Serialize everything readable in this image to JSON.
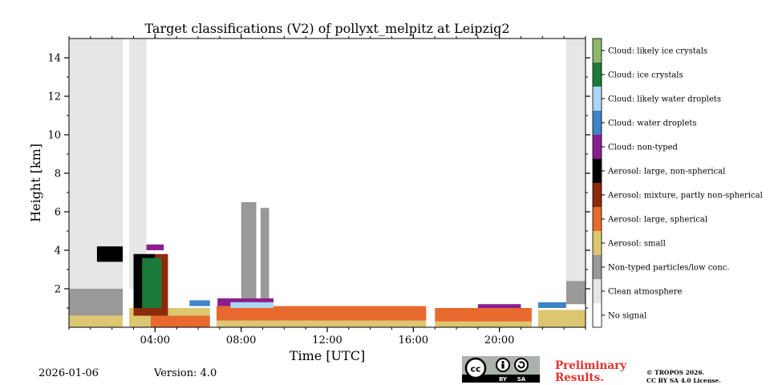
{
  "chart_data": {
    "type": "heatmap",
    "title": "Target classifications (V2) of pollyxt_melpitz at Leipzig2",
    "xlabel": "Time [UTC]",
    "ylabel": "Height [km]",
    "xlim_hours": [
      0,
      24
    ],
    "ylim_km": [
      0,
      15
    ],
    "xticks": [
      {
        "value": 4,
        "label": "04:00"
      },
      {
        "value": 8,
        "label": "08:00"
      },
      {
        "value": 12,
        "label": "12:00"
      },
      {
        "value": 16,
        "label": "16:00"
      },
      {
        "value": 20,
        "label": "20:00"
      }
    ],
    "yticks": [
      {
        "value": 2,
        "label": "2"
      },
      {
        "value": 4,
        "label": "4"
      },
      {
        "value": 6,
        "label": "6"
      },
      {
        "value": 8,
        "label": "8"
      },
      {
        "value": 10,
        "label": "10"
      },
      {
        "value": 12,
        "label": "12"
      },
      {
        "value": 14,
        "label": "14"
      }
    ],
    "legend": [
      {
        "label": "No signal",
        "color": "#ffffff"
      },
      {
        "label": "Clean atmosphere",
        "color": "#e6e6e6"
      },
      {
        "label": "Non-typed particles/low conc.",
        "color": "#999999"
      },
      {
        "label": "Aerosol: small",
        "color": "#dcc66f"
      },
      {
        "label": "Aerosol: large, spherical",
        "color": "#e8692d"
      },
      {
        "label": "Aerosol: mixture, partly non-spherical",
        "color": "#8c2a0b"
      },
      {
        "label": "Aerosol: large, non-spherical",
        "color": "#000000"
      },
      {
        "label": "Cloud: non-typed",
        "color": "#8b1f8f"
      },
      {
        "label": "Cloud: water droplets",
        "color": "#3e84c6"
      },
      {
        "label": "Cloud: likely water droplets",
        "color": "#acd6f2"
      },
      {
        "label": "Cloud: ice crystals",
        "color": "#1b7a3b"
      },
      {
        "label": "Cloud: likely ice crystals",
        "color": "#8fb86a"
      }
    ],
    "no_signal_gaps_hours": [
      [
        2.5,
        2.8
      ],
      [
        6.55,
        6.85
      ],
      [
        16.6,
        17.0
      ],
      [
        21.5,
        21.8
      ]
    ],
    "regions": [
      {
        "class": "Clean atmosphere",
        "t0": 0.0,
        "t1": 2.5,
        "h0": 2.0,
        "h1": 15.0
      },
      {
        "class": "Clean atmosphere",
        "t0": 2.8,
        "t1": 3.6,
        "h0": 2.0,
        "h1": 15.0
      },
      {
        "class": "Clean atmosphere",
        "t0": 23.1,
        "t1": 24.0,
        "h0": 2.0,
        "h1": 15.0
      },
      {
        "class": "Non-typed particles/low conc.",
        "t0": 0.0,
        "t1": 2.5,
        "h0": 0.6,
        "h1": 2.0
      },
      {
        "class": "Non-typed particles/low conc.",
        "t0": 23.1,
        "t1": 24.0,
        "h0": 1.2,
        "h1": 2.4
      },
      {
        "class": "Non-typed particles/low conc.",
        "t0": 8.0,
        "t1": 8.7,
        "h0": 1.2,
        "h1": 6.5
      },
      {
        "class": "Non-typed particles/low conc.",
        "t0": 8.9,
        "t1": 9.3,
        "h0": 1.2,
        "h1": 6.2
      },
      {
        "class": "Aerosol: small",
        "t0": 0.0,
        "t1": 2.5,
        "h0": 0.0,
        "h1": 0.6
      },
      {
        "class": "Aerosol: small",
        "t0": 2.8,
        "t1": 6.55,
        "h0": 0.0,
        "h1": 1.0
      },
      {
        "class": "Aerosol: small",
        "t0": 6.85,
        "t1": 16.6,
        "h0": 0.0,
        "h1": 0.35
      },
      {
        "class": "Aerosol: small",
        "t0": 17.0,
        "t1": 21.5,
        "h0": 0.0,
        "h1": 0.3
      },
      {
        "class": "Aerosol: small",
        "t0": 21.8,
        "t1": 24.0,
        "h0": 0.0,
        "h1": 0.9
      },
      {
        "class": "Aerosol: large, spherical",
        "t0": 6.85,
        "t1": 16.6,
        "h0": 0.35,
        "h1": 1.1
      },
      {
        "class": "Aerosol: large, spherical",
        "t0": 17.0,
        "t1": 21.5,
        "h0": 0.3,
        "h1": 1.0
      },
      {
        "class": "Aerosol: large, spherical",
        "t0": 3.8,
        "t1": 6.55,
        "h0": 0.0,
        "h1": 0.6
      },
      {
        "class": "Aerosol: mixture, partly non-spherical",
        "t0": 3.0,
        "t1": 4.6,
        "h0": 0.6,
        "h1": 3.8
      },
      {
        "class": "Aerosol: large, non-spherical",
        "t0": 1.3,
        "t1": 2.5,
        "h0": 3.4,
        "h1": 4.2
      },
      {
        "class": "Aerosol: large, non-spherical",
        "t0": 3.0,
        "t1": 4.0,
        "h0": 1.0,
        "h1": 3.8
      },
      {
        "class": "Cloud: non-typed",
        "t0": 3.6,
        "t1": 4.4,
        "h0": 4.0,
        "h1": 4.3
      },
      {
        "class": "Cloud: non-typed",
        "t0": 6.9,
        "t1": 9.5,
        "h0": 1.1,
        "h1": 1.5
      },
      {
        "class": "Cloud: non-typed",
        "t0": 19.0,
        "t1": 21.0,
        "h0": 1.0,
        "h1": 1.2
      },
      {
        "class": "Cloud: water droplets",
        "t0": 5.6,
        "t1": 6.55,
        "h0": 1.1,
        "h1": 1.4
      },
      {
        "class": "Cloud: water droplets",
        "t0": 21.8,
        "t1": 23.1,
        "h0": 1.0,
        "h1": 1.3
      },
      {
        "class": "Cloud: likely water droplets",
        "t0": 7.5,
        "t1": 9.5,
        "h0": 1.0,
        "h1": 1.3
      },
      {
        "class": "Cloud: ice crystals",
        "t0": 3.4,
        "t1": 4.3,
        "h0": 1.0,
        "h1": 3.6
      }
    ]
  },
  "footer": {
    "date": "2026-01-06",
    "version": "Version: 4.0",
    "preliminary": [
      "Preliminary",
      "Results."
    ],
    "license": [
      "© TROPOS 2026.",
      "CC BY SA 4.0 License."
    ],
    "cc_badge": {
      "cc": "cc",
      "by": "BY",
      "sa": "SA"
    }
  }
}
